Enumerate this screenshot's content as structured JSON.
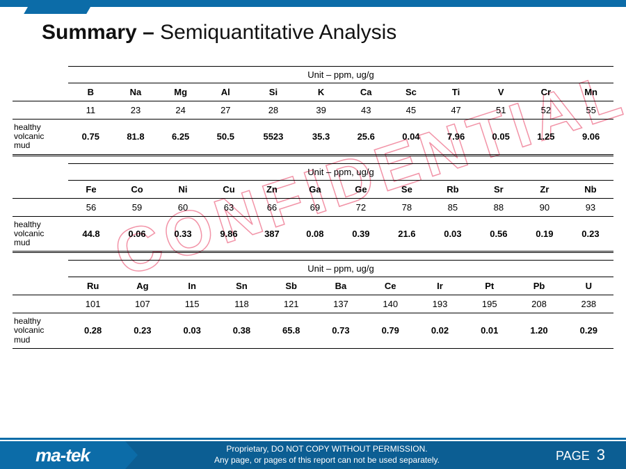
{
  "title_bold": "Summary –",
  "title_rest": " Semiquantitative Analysis",
  "unit_label": "Unit – ppm, ug/g",
  "sample_label": "healthy volcanic mud",
  "watermark": "CONFIDENTIAL",
  "tables": [
    {
      "elements": [
        "B",
        "Na",
        "Mg",
        "Al",
        "Si",
        "K",
        "Ca",
        "Sc",
        "Ti",
        "V",
        "Cr",
        "Mn"
      ],
      "numbers": [
        "11",
        "23",
        "24",
        "27",
        "28",
        "39",
        "43",
        "45",
        "47",
        "51",
        "52",
        "55"
      ],
      "values": [
        "0.75",
        "81.8",
        "6.25",
        "50.5",
        "5523",
        "35.3",
        "25.6",
        "0.04",
        "7.96",
        "0.05",
        "1.25",
        "9.06"
      ],
      "double_bottom": true
    },
    {
      "elements": [
        "Fe",
        "Co",
        "Ni",
        "Cu",
        "Zn",
        "Ga",
        "Ge",
        "Se",
        "Rb",
        "Sr",
        "Zr",
        "Nb"
      ],
      "numbers": [
        "56",
        "59",
        "60",
        "63",
        "66",
        "69",
        "72",
        "78",
        "85",
        "88",
        "90",
        "93"
      ],
      "values": [
        "44.8",
        "0.06",
        "0.33",
        "9.86",
        "387",
        "0.08",
        "0.39",
        "21.6",
        "0.03",
        "0.56",
        "0.19",
        "0.23"
      ],
      "double_bottom": true
    },
    {
      "elements": [
        "Ru",
        "Ag",
        "In",
        "Sn",
        "Sb",
        "Ba",
        "Ce",
        "Ir",
        "Pt",
        "Pb",
        "U"
      ],
      "numbers": [
        "101",
        "107",
        "115",
        "118",
        "121",
        "137",
        "140",
        "193",
        "195",
        "208",
        "238"
      ],
      "values": [
        "0.28",
        "0.23",
        "0.03",
        "0.38",
        "65.8",
        "0.73",
        "0.79",
        "0.02",
        "0.01",
        "1.20",
        "0.29"
      ],
      "double_bottom": false
    }
  ],
  "footer": {
    "logo": "ma-tek",
    "line1": "Proprietary, DO NOT COPY WITHOUT PERMISSION.",
    "line2": "Any page, or pages of this report can not be used separately.",
    "page_label": "PAGE",
    "page_num": "3"
  },
  "colors": {
    "brand": "#0c6ca8",
    "footer_bg": "#0c5e93",
    "watermark_stroke": "rgba(230,40,80,0.5)"
  }
}
